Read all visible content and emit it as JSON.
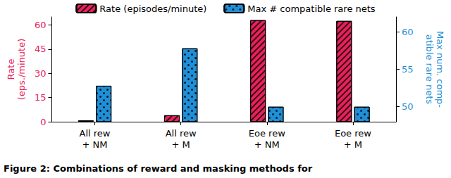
{
  "chart_data": {
    "type": "bar",
    "title": "Figure 2: Combinations of reward and masking methods for",
    "categories": [
      "All rew\n+ NM",
      "All rew\n+ M",
      "Eoe rew\n+ NM",
      "Eoe rew\n+ M"
    ],
    "series": [
      {
        "name": "Rate (episodes/minute)",
        "color": "#e8215a",
        "values": [
          0.8,
          4,
          63,
          62.5
        ]
      },
      {
        "name": "Max # compatible rare nets",
        "color": "#1f8fd8",
        "axis": "y2",
        "values": [
          52.8,
          57.8,
          50,
          50
        ]
      }
    ],
    "ylabel": "Rate\n(eps./minute)",
    "y2label": "Max num. comp-\natible rare nets",
    "ylim": [
      0,
      65
    ],
    "yticks": [
      0,
      15,
      30,
      45,
      60
    ],
    "y2lim": [
      48,
      62
    ],
    "y2ticks": [
      50,
      55,
      60
    ],
    "legend": "top",
    "grid": false
  }
}
